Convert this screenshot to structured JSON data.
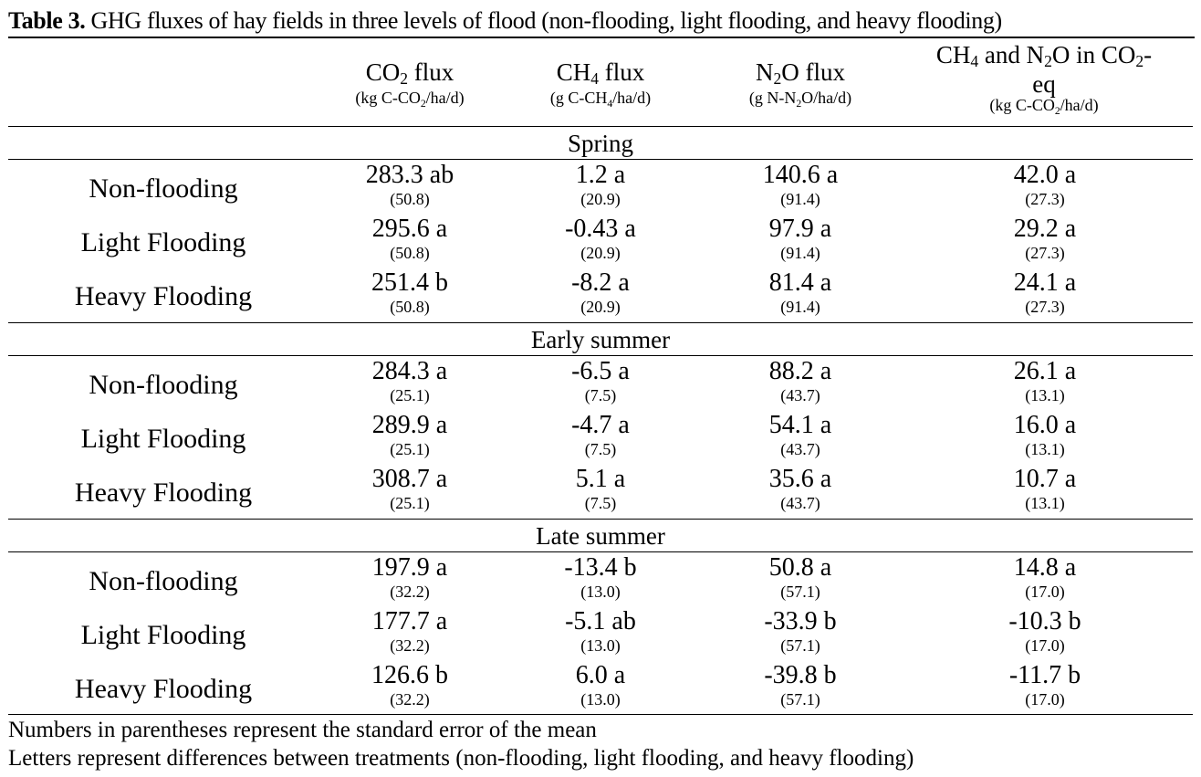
{
  "caption": {
    "label": "Table 3.",
    "text": " GHG fluxes of hay fields in three levels of flood (non-flooding, light flooding, and heavy flooding)"
  },
  "header": {
    "co2": {
      "a": "CO",
      "sub": "2",
      "b": " flux",
      "unit_a": "(kg C-CO",
      "unit_sub": "2",
      "unit_b": "/ha/d)"
    },
    "ch4": {
      "a": "CH",
      "sub": "4",
      "b": " flux",
      "unit_a": "(g C-CH",
      "unit_sub": "4",
      "unit_b": "/ha/d)"
    },
    "n2o": {
      "a": "N",
      "sub": "2",
      "b": "O flux",
      "unit_a": "(g N-N",
      "unit_sub": "2",
      "unit_b": "O/ha/d)"
    },
    "eq": {
      "a": "CH",
      "sub1": "4",
      "b": " and N",
      "sub2": "2",
      "c": "O in CO",
      "sub3": "2",
      "d": "-",
      "line2": "eq",
      "unit_a": "(kg C-CO",
      "unit_sub": "2",
      "unit_b": "/ha/d)"
    }
  },
  "seasons": [
    {
      "name": "Spring",
      "rows": [
        {
          "label": "Non-flooding",
          "co2": "283.3 ab",
          "co2_se": "(50.8)",
          "ch4": "1.2 a",
          "ch4_se": "(20.9)",
          "n2o": "140.6 a",
          "n2o_se": "(91.4)",
          "eq": "42.0 a",
          "eq_se": "(27.3)"
        },
        {
          "label": "Light Flooding",
          "co2": "295.6 a",
          "co2_se": "(50.8)",
          "ch4": "-0.43 a",
          "ch4_se": "(20.9)",
          "n2o": "97.9 a",
          "n2o_se": "(91.4)",
          "eq": "29.2 a",
          "eq_se": "(27.3)"
        },
        {
          "label": "Heavy Flooding",
          "co2": "251.4 b",
          "co2_se": "(50.8)",
          "ch4": "-8.2 a",
          "ch4_se": "(20.9)",
          "n2o": "81.4 a",
          "n2o_se": "(91.4)",
          "eq": "24.1 a",
          "eq_se": "(27.3)"
        }
      ]
    },
    {
      "name": "Early summer",
      "rows": [
        {
          "label": "Non-flooding",
          "co2": "284.3 a",
          "co2_se": "(25.1)",
          "ch4": "-6.5 a",
          "ch4_se": "(7.5)",
          "n2o": "88.2 a",
          "n2o_se": "(43.7)",
          "eq": "26.1 a",
          "eq_se": "(13.1)"
        },
        {
          "label": "Light Flooding",
          "co2": "289.9 a",
          "co2_se": "(25.1)",
          "ch4": "-4.7 a",
          "ch4_se": "(7.5)",
          "n2o": "54.1 a",
          "n2o_se": "(43.7)",
          "eq": "16.0 a",
          "eq_se": "(13.1)"
        },
        {
          "label": "Heavy Flooding",
          "co2": "308.7 a",
          "co2_se": "(25.1)",
          "ch4": "5.1 a",
          "ch4_se": "(7.5)",
          "n2o": "35.6 a",
          "n2o_se": "(43.7)",
          "eq": "10.7 a",
          "eq_se": "(13.1)"
        }
      ]
    },
    {
      "name": "Late summer",
      "rows": [
        {
          "label": "Non-flooding",
          "co2": "197.9 a",
          "co2_se": "(32.2)",
          "ch4": "-13.4 b",
          "ch4_se": "(13.0)",
          "n2o": "50.8 a",
          "n2o_se": "(57.1)",
          "eq": "14.8 a",
          "eq_se": "(17.0)"
        },
        {
          "label": "Light Flooding",
          "co2": "177.7 a",
          "co2_se": "(32.2)",
          "ch4": "-5.1 ab",
          "ch4_se": "(13.0)",
          "n2o": "-33.9 b",
          "n2o_se": "(57.1)",
          "eq": "-10.3 b",
          "eq_se": "(17.0)"
        },
        {
          "label": "Heavy Flooding",
          "co2": "126.6 b",
          "co2_se": "(32.2)",
          "ch4": "6.0 a",
          "ch4_se": "(13.0)",
          "n2o": "-39.8 b",
          "n2o_se": "(57.1)",
          "eq": "-11.7 b",
          "eq_se": "(17.0)"
        }
      ]
    }
  ],
  "notes": [
    "Numbers in parentheses represent the standard error of the mean",
    "Letters represent differences between treatments (non-flooding, light flooding, and heavy flooding)"
  ]
}
